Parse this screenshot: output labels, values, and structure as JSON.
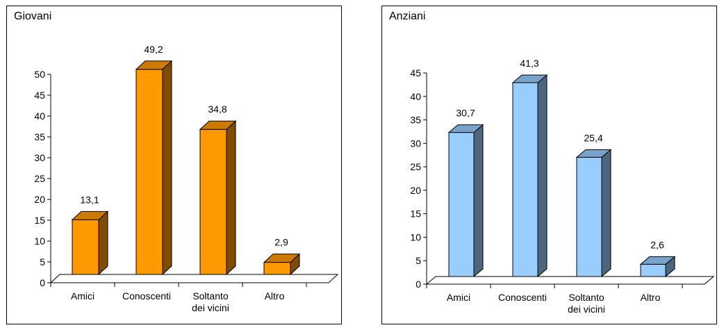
{
  "chart_data": [
    {
      "type": "bar",
      "title": "Giovani",
      "categories": [
        "Amici",
        "Conoscenti",
        "Soltanto dei vicini",
        "Altro"
      ],
      "category_lines": [
        [
          "Amici"
        ],
        [
          "Conoscenti"
        ],
        [
          "Soltanto",
          "dei vicini"
        ],
        [
          "Altro"
        ]
      ],
      "values": [
        13.1,
        49.2,
        34.8,
        2.9
      ],
      "value_labels": [
        "13,1",
        "49,2",
        "34,8",
        "2,9"
      ],
      "ylim": [
        0,
        50
      ],
      "yticks": [
        0,
        5,
        10,
        15,
        20,
        25,
        30,
        35,
        40,
        45,
        50
      ],
      "bar_color": "#ff9900",
      "bar_side_color": "#7f4c00",
      "bar_top_color": "#cc7a00",
      "grid": false,
      "legend": "none"
    },
    {
      "type": "bar",
      "title": "Anziani",
      "categories": [
        "Amici",
        "Conoscenti",
        "Soltanto dei vicini",
        "Altro"
      ],
      "category_lines": [
        [
          "Amici"
        ],
        [
          "Conoscenti"
        ],
        [
          "Soltanto",
          "dei vicini"
        ],
        [
          "Altro"
        ]
      ],
      "values": [
        30.7,
        41.3,
        25.4,
        2.6
      ],
      "value_labels": [
        "30,7",
        "41,3",
        "25,4",
        "2,6"
      ],
      "ylim": [
        0,
        45
      ],
      "yticks": [
        0,
        5,
        10,
        15,
        20,
        25,
        30,
        35,
        40,
        45
      ],
      "bar_color": "#99ccff",
      "bar_side_color": "#4c6680",
      "bar_top_color": "#7aa3cc",
      "grid": false,
      "legend": "none"
    }
  ]
}
